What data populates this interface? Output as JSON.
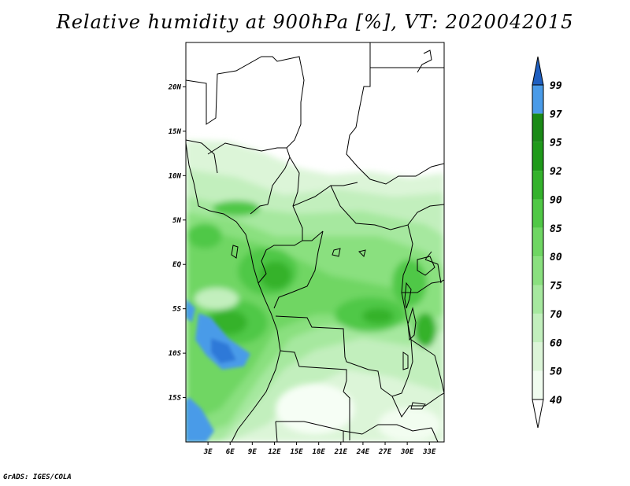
{
  "title": "Relative humidity at 900hPa [%], VT: 2020042015",
  "credit": "GrADS: IGES/COLA",
  "map": {
    "lon_range": [
      0,
      35
    ],
    "lat_range": [
      -20,
      25
    ],
    "lat_ticks": [
      {
        "value": 20,
        "label": "20N"
      },
      {
        "value": 15,
        "label": "15N"
      },
      {
        "value": 10,
        "label": "10N"
      },
      {
        "value": 5,
        "label": "5N"
      },
      {
        "value": 0,
        "label": "EQ"
      },
      {
        "value": -5,
        "label": "5S"
      },
      {
        "value": -10,
        "label": "10S"
      },
      {
        "value": -15,
        "label": "15S"
      }
    ],
    "lon_ticks": [
      {
        "value": 3,
        "label": "3E"
      },
      {
        "value": 6,
        "label": "6E"
      },
      {
        "value": 9,
        "label": "9E"
      },
      {
        "value": 12,
        "label": "12E"
      },
      {
        "value": 15,
        "label": "15E"
      },
      {
        "value": 18,
        "label": "18E"
      },
      {
        "value": 21,
        "label": "21E"
      },
      {
        "value": 24,
        "label": "24E"
      },
      {
        "value": 27,
        "label": "27E"
      },
      {
        "value": 30,
        "label": "30E"
      },
      {
        "value": 33,
        "label": "33E"
      }
    ]
  },
  "colorbar": {
    "levels": [
      {
        "label": "40",
        "color": "#f0fcef"
      },
      {
        "label": "50",
        "color": "#dcf5d8"
      },
      {
        "label": "60",
        "color": "#c2efbd"
      },
      {
        "label": "70",
        "color": "#a6e89f"
      },
      {
        "label": "75",
        "color": "#8ae07f"
      },
      {
        "label": "80",
        "color": "#6fd663"
      },
      {
        "label": "85",
        "color": "#50c846"
      },
      {
        "label": "90",
        "color": "#34b22c"
      },
      {
        "label": "92",
        "color": "#1f9a1a"
      },
      {
        "label": "95",
        "color": "#1a8a17"
      },
      {
        "label": "97",
        "color": "#4a9be8"
      },
      {
        "label": "99",
        "color": "#2f79d8"
      }
    ],
    "over_color": "#1f5fc0",
    "under_color": "#ffffff"
  }
}
